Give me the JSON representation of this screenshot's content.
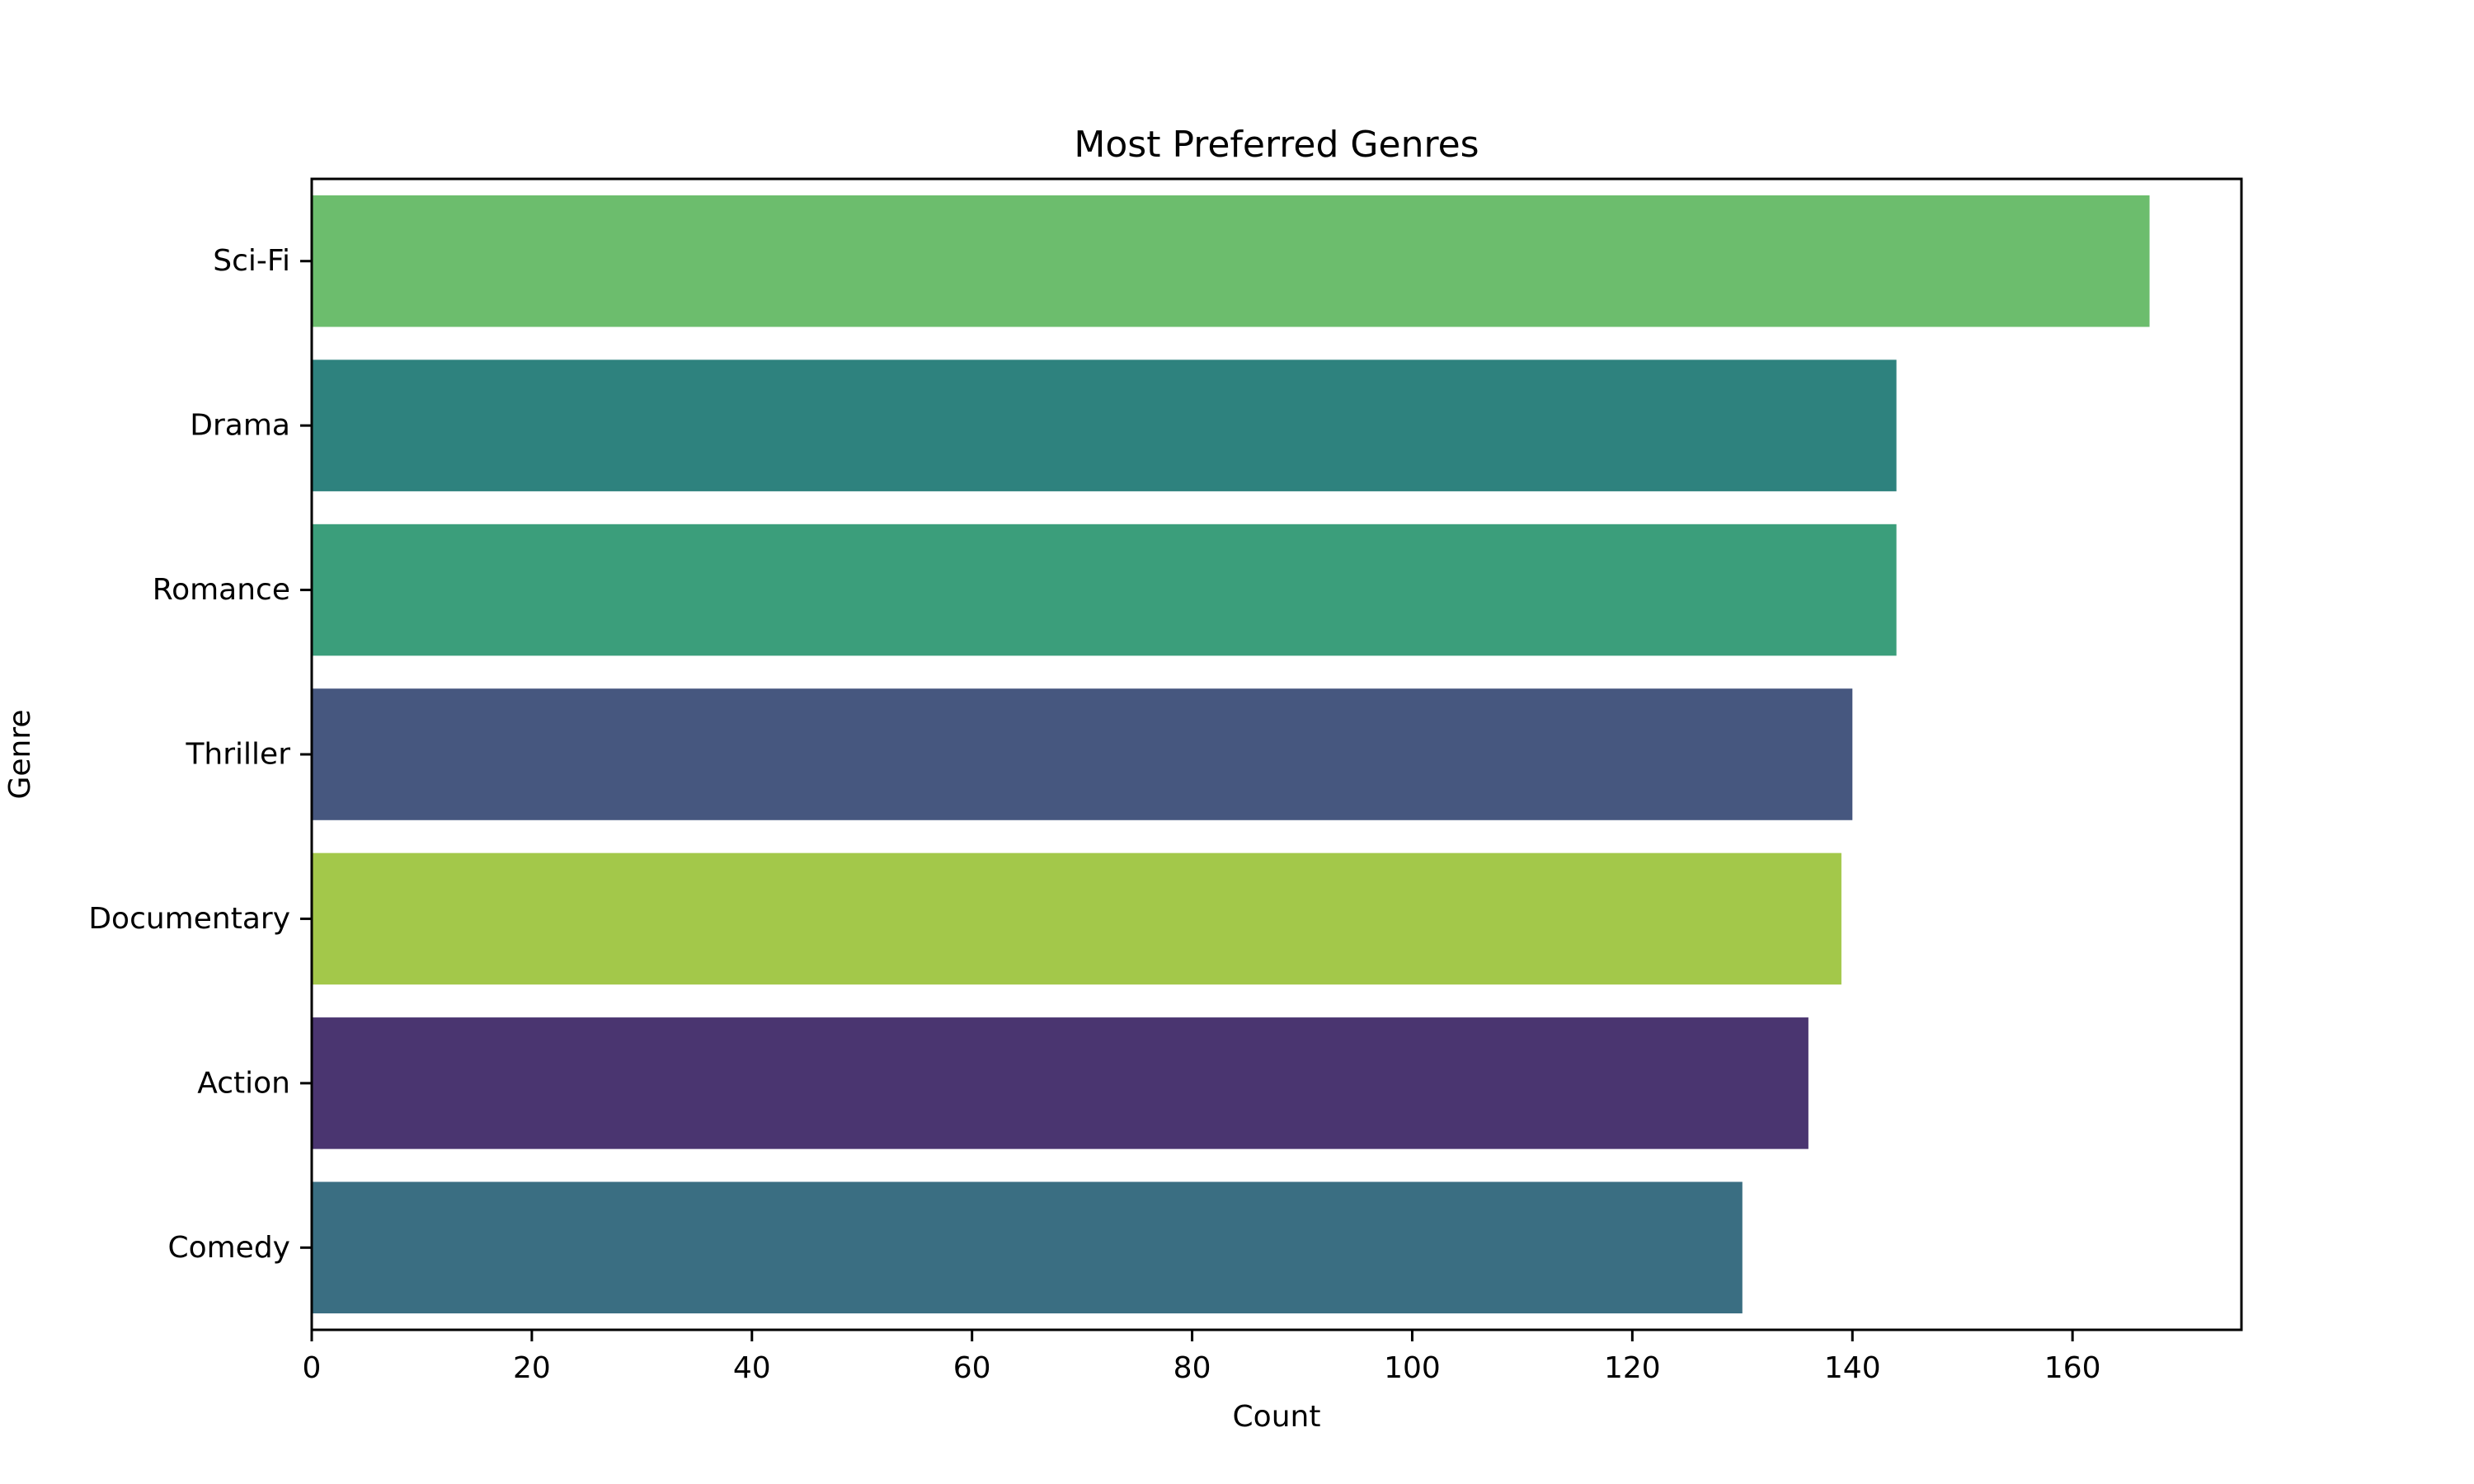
{
  "chart_data": {
    "type": "bar",
    "orientation": "horizontal",
    "title": "Most Preferred Genres",
    "xlabel": "Count",
    "ylabel": "Genre",
    "categories": [
      "Sci-Fi",
      "Drama",
      "Romance",
      "Thriller",
      "Documentary",
      "Action",
      "Comedy"
    ],
    "values": [
      167,
      144,
      144,
      140,
      139,
      136,
      130
    ],
    "colors": [
      "#6cbd6d",
      "#2e827e",
      "#3b9e7b",
      "#46577f",
      "#a3c84a",
      "#4a3570",
      "#3a6e82"
    ],
    "xlim": [
      0,
      175.35
    ],
    "xticks": [
      0,
      20,
      40,
      60,
      80,
      100,
      120,
      140,
      160
    ],
    "grid": false,
    "legend": false
  }
}
